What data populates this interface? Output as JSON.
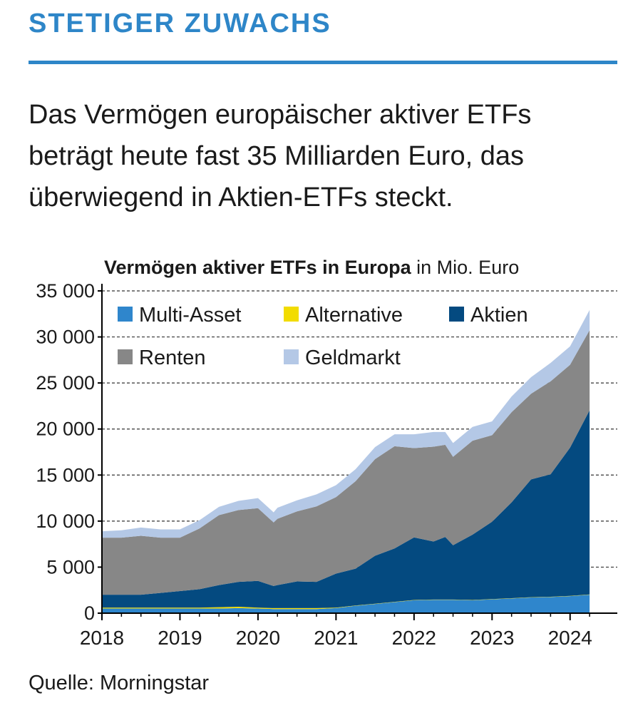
{
  "kicker": "STETIGER ZUWACHS",
  "headline": "Das Vermögen europäischer aktiver ETFs beträgt heute fast 35 Milliarden Euro, das überwiegend in Aktien-ETFs steckt.",
  "source": "Quelle: Morningstar",
  "chart_data": {
    "type": "area",
    "stacked": true,
    "title": "Vermögen aktiver ETFs in Europa",
    "unit": "in Mio. Euro",
    "xlabel": "",
    "ylabel": "",
    "ylim": [
      0,
      35000
    ],
    "xlim": [
      2018,
      2024.45
    ],
    "y_ticks": [
      0,
      5000,
      10000,
      15000,
      20000,
      25000,
      30000,
      35000
    ],
    "y_tick_labels": [
      "0",
      "5 000",
      "10 000",
      "15 000",
      "20 000",
      "25 000",
      "30 000",
      "35 000"
    ],
    "x_ticks": [
      2018,
      2019,
      2020,
      2021,
      2022,
      2023,
      2024
    ],
    "x_tick_labels": [
      "2018",
      "2019",
      "2020",
      "2021",
      "2022",
      "2023",
      "2024"
    ],
    "grid": "horizontal dashed",
    "legend_position": "top-left",
    "x": [
      2018.0,
      2018.25,
      2018.5,
      2018.75,
      2019.0,
      2019.25,
      2019.5,
      2019.75,
      2020.0,
      2020.2,
      2020.25,
      2020.5,
      2020.75,
      2021.0,
      2021.25,
      2021.5,
      2021.75,
      2022.0,
      2022.25,
      2022.4,
      2022.5,
      2022.75,
      2023.0,
      2023.25,
      2023.5,
      2023.75,
      2024.0,
      2024.25
    ],
    "series": [
      {
        "name": "Multi-Asset",
        "color": "#2f86cc",
        "values": [
          500,
          500,
          500,
          500,
          500,
          500,
          500,
          550,
          500,
          450,
          450,
          450,
          450,
          550,
          800,
          1000,
          1200,
          1400,
          1450,
          1450,
          1450,
          1400,
          1500,
          1600,
          1700,
          1750,
          1850,
          2000
        ]
      },
      {
        "name": "Alternative",
        "color": "#f2dc00",
        "values": [
          100,
          100,
          100,
          100,
          100,
          100,
          150,
          150,
          100,
          100,
          100,
          100,
          100,
          50,
          30,
          30,
          30,
          30,
          30,
          30,
          30,
          30,
          30,
          30,
          30,
          30,
          30,
          30
        ]
      },
      {
        "name": "Aktien",
        "color": "#044a80",
        "values": [
          1400,
          1400,
          1400,
          1600,
          1800,
          2000,
          2400,
          2700,
          2900,
          2400,
          2500,
          2900,
          2850,
          3700,
          4000,
          5200,
          5800,
          6800,
          6300,
          6800,
          5900,
          7100,
          8400,
          10400,
          12800,
          13300,
          16100,
          20000
        ]
      },
      {
        "name": "Renten",
        "color": "#878787",
        "values": [
          6200,
          6200,
          6400,
          6000,
          5800,
          6600,
          7600,
          7800,
          7900,
          6900,
          7200,
          7600,
          8200,
          8300,
          9500,
          10500,
          11100,
          9700,
          10300,
          10000,
          9600,
          10200,
          9400,
          9800,
          9300,
          10100,
          9000,
          8700
        ]
      },
      {
        "name": "Geldmarkt",
        "color": "#b4c8e6",
        "values": [
          700,
          800,
          900,
          900,
          900,
          900,
          900,
          1000,
          1100,
          1100,
          1200,
          1200,
          1300,
          1300,
          1300,
          1300,
          1300,
          1500,
          1600,
          1400,
          1500,
          1500,
          1500,
          1700,
          1800,
          2000,
          2000,
          2200
        ]
      }
    ],
    "legend_order": [
      "Multi-Asset",
      "Alternative",
      "Aktien",
      "Renten",
      "Geldmarkt"
    ]
  }
}
